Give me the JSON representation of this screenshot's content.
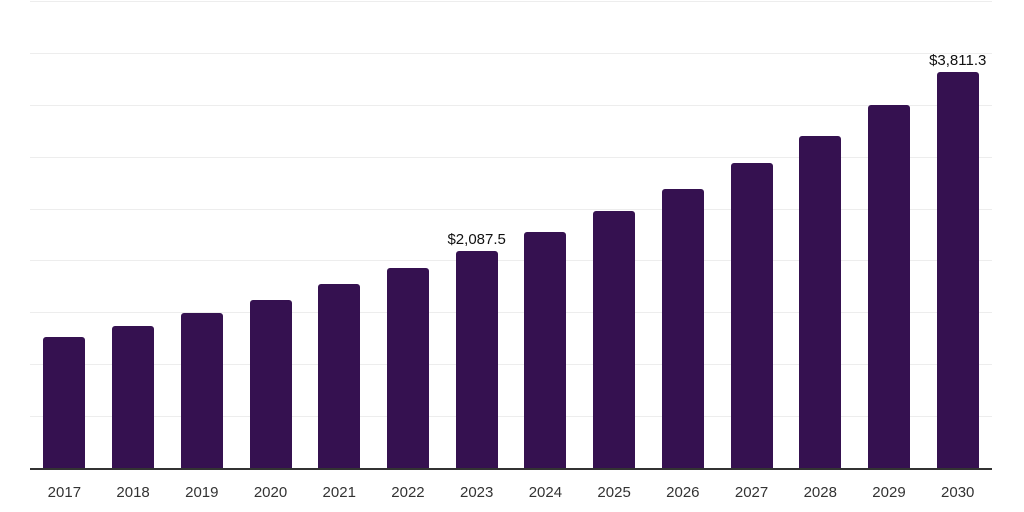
{
  "chart_data": {
    "type": "bar",
    "title": "",
    "xlabel": "",
    "ylabel": "",
    "categories": [
      "2017",
      "2018",
      "2019",
      "2020",
      "2021",
      "2022",
      "2023",
      "2024",
      "2025",
      "2026",
      "2027",
      "2028",
      "2029",
      "2030"
    ],
    "values": [
      1260,
      1370,
      1495,
      1620,
      1775,
      1925,
      2087.5,
      2270,
      2475,
      2690,
      2935,
      3195,
      3495,
      3811.3
    ],
    "data_labels": {
      "2023": "$2,087.5",
      "2030": "$3,811.3"
    },
    "ylim": [
      0,
      4500
    ],
    "gridline_step": 500,
    "grid": true,
    "legend": false,
    "y_tick_labels_visible": false
  },
  "colors": {
    "bar": "#351150",
    "gridline": "#ededed",
    "axis_line": "#333333",
    "tick_label": "#333333",
    "data_label": "#111111",
    "background": "#ffffff"
  }
}
